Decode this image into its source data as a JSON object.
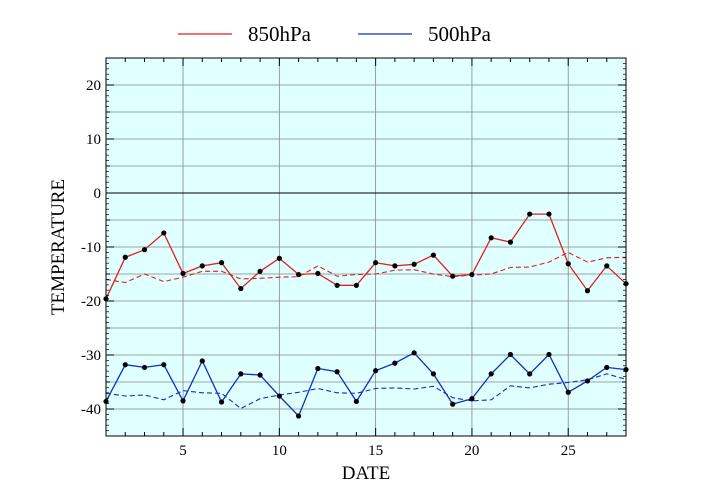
{
  "chart_data": {
    "type": "line",
    "xlabel": "DATE",
    "ylabel": "TEMPERATURE",
    "xlim": [
      1,
      28
    ],
    "ylim": [
      -45,
      25
    ],
    "x_ticks": [
      5,
      10,
      15,
      20,
      25
    ],
    "y_ticks": [
      -40,
      -30,
      -20,
      -10,
      0,
      10,
      20
    ],
    "grid": true,
    "legend_position": "top",
    "background_color": "#e0ffff",
    "x": [
      1,
      2,
      3,
      4,
      5,
      6,
      7,
      8,
      9,
      10,
      11,
      12,
      13,
      14,
      15,
      16,
      17,
      18,
      19,
      20,
      21,
      22,
      23,
      24,
      25,
      26,
      27,
      28
    ],
    "series": [
      {
        "name": "850hPa",
        "color": "#e02020",
        "values": [
          -19.6,
          -11.9,
          -10.5,
          -7.4,
          -14.9,
          -13.5,
          -12.9,
          -17.7,
          -14.5,
          -12.1,
          -15.1,
          -14.9,
          -17.1,
          -17.1,
          -12.9,
          -13.5,
          -13.2,
          -11.5,
          -15.4,
          -15.1,
          -8.3,
          -9.1,
          -3.9,
          -3.9,
          -13.1,
          -18.1,
          -13.5,
          -16.8
        ],
        "climatology": [
          -16.0,
          -16.6,
          -15.0,
          -16.4,
          -15.6,
          -14.5,
          -14.5,
          -15.9,
          -15.8,
          -15.6,
          -15.5,
          -13.5,
          -15.4,
          -15.1,
          -15.0,
          -14.3,
          -14.2,
          -15.0,
          -15.5,
          -15.2,
          -15.0,
          -13.8,
          -13.7,
          -12.8,
          -11.0,
          -12.8,
          -12.0,
          -11.9
        ]
      },
      {
        "name": "500hPa",
        "color": "#1030c0",
        "values": [
          -38.6,
          -31.8,
          -32.3,
          -31.8,
          -38.5,
          -31.1,
          -38.7,
          -33.5,
          -33.7,
          -37.6,
          -41.3,
          -32.5,
          -33.1,
          -38.6,
          -32.9,
          -31.5,
          -29.6,
          -33.5,
          -39.1,
          -38.1,
          -33.5,
          -29.9,
          -33.5,
          -29.9,
          -36.9,
          -34.8,
          -32.3,
          -32.7
        ],
        "climatology": [
          -37.1,
          -37.6,
          -37.4,
          -38.3,
          -36.6,
          -37.0,
          -37.1,
          -39.9,
          -38.1,
          -37.4,
          -36.9,
          -36.2,
          -37.0,
          -37.1,
          -36.2,
          -36.1,
          -36.3,
          -35.8,
          -37.9,
          -38.5,
          -38.3,
          -35.7,
          -36.1,
          -35.4,
          -35.1,
          -34.6,
          -33.5,
          -34.5
        ]
      }
    ]
  }
}
